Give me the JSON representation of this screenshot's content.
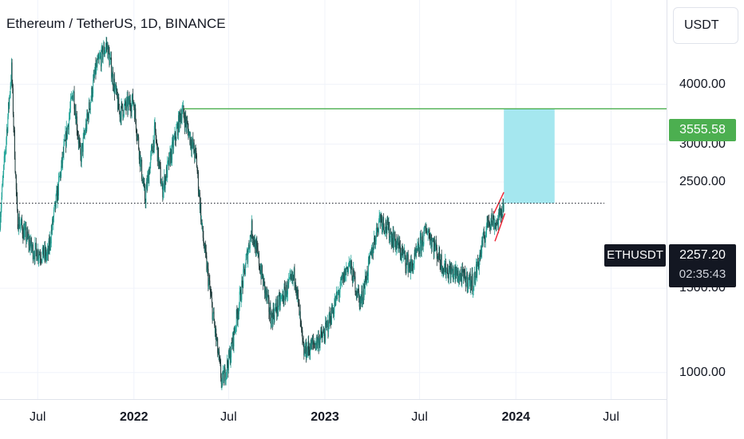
{
  "colors": {
    "candle": "#26a69a",
    "candle_dark": "#1e3a3a",
    "resistance_line": "#4caf50",
    "target_zone": "#a5e7ef",
    "wedge": "#ef2b3a",
    "price_line": "#131722"
  },
  "toolbar": {
    "currency_button_label": "USDT"
  },
  "chart_data": {
    "type": "candlestick",
    "title": "Ethereum / TetherUS, 1D, BINANCE",
    "symbol": "ETHUSDT",
    "current_price": "2257.20",
    "countdown": "02:35:43",
    "y_scale": "log",
    "ylim": [
      880,
      6000
    ],
    "xlim": [
      "2021-04-20",
      "2024-10-15"
    ],
    "y_ticks": [
      "1000.00",
      "1500.00",
      "2500.00",
      "3000.00",
      "4000.00"
    ],
    "x_ticks": [
      {
        "label": "Jul",
        "date": "2021-07-01",
        "bold": false
      },
      {
        "label": "2022",
        "date": "2022-01-01",
        "bold": true
      },
      {
        "label": "Jul",
        "date": "2022-07-01",
        "bold": false
      },
      {
        "label": "2023",
        "date": "2023-01-01",
        "bold": true
      },
      {
        "label": "Jul",
        "date": "2023-07-01",
        "bold": false
      },
      {
        "label": "2024",
        "date": "2024-01-01",
        "bold": true
      },
      {
        "label": "Jul",
        "date": "2024-07-01",
        "bold": false
      }
    ],
    "price_path": [
      [
        "2021-04-20",
        2100
      ],
      [
        "2021-05-12",
        4300
      ],
      [
        "2021-05-23",
        2100
      ],
      [
        "2021-06-22",
        1800
      ],
      [
        "2021-07-20",
        1750
      ],
      [
        "2021-08-28",
        3300
      ],
      [
        "2021-09-07",
        3900
      ],
      [
        "2021-09-21",
        2800
      ],
      [
        "2021-10-20",
        4300
      ],
      [
        "2021-11-10",
        4850
      ],
      [
        "2021-12-04",
        3500
      ],
      [
        "2021-12-31",
        3700
      ],
      [
        "2022-01-22",
        2300
      ],
      [
        "2022-02-10",
        3200
      ],
      [
        "2022-02-24",
        2400
      ],
      [
        "2022-04-03",
        3550
      ],
      [
        "2022-04-30",
        2800
      ],
      [
        "2022-05-12",
        1950
      ],
      [
        "2022-06-18",
        950
      ],
      [
        "2022-07-05",
        1100
      ],
      [
        "2022-08-14",
        2000
      ],
      [
        "2022-09-20",
        1300
      ],
      [
        "2022-11-05",
        1600
      ],
      [
        "2022-11-21",
        1100
      ],
      [
        "2022-12-31",
        1200
      ],
      [
        "2023-02-16",
        1700
      ],
      [
        "2023-03-10",
        1400
      ],
      [
        "2023-04-16",
        2120
      ],
      [
        "2023-06-15",
        1650
      ],
      [
        "2023-07-15",
        2000
      ],
      [
        "2023-08-17",
        1650
      ],
      [
        "2023-10-12",
        1540
      ],
      [
        "2023-11-10",
        2100
      ],
      [
        "2023-11-26",
        2050
      ],
      [
        "2023-12-09",
        2257
      ]
    ],
    "annotations": {
      "resistance_level": {
        "label": "3555.58",
        "price": 3555.58,
        "from": "2022-04-03"
      },
      "target_zone": {
        "from": "2023-12-09",
        "to": "2024-03-15",
        "low": 2257.2,
        "high": 3555.58
      },
      "current_price_line": {
        "price": 2257.2
      },
      "rising_wedge": {
        "upper": [
          [
            "2023-11-20",
            2150
          ],
          [
            "2023-12-09",
            2380
          ]
        ],
        "lower": [
          [
            "2023-11-22",
            1880
          ],
          [
            "2023-12-11",
            2150
          ]
        ]
      }
    }
  }
}
